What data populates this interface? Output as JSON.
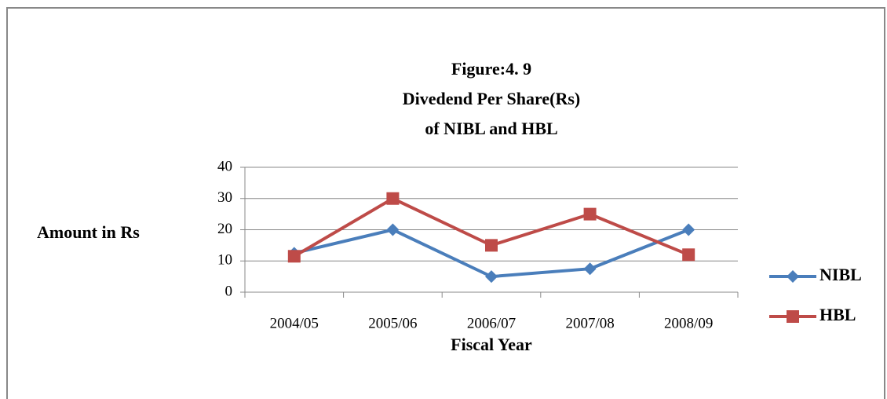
{
  "chart_data": {
    "type": "line",
    "title": [
      "Figure:4. 9",
      "Divedend  Per Share(Rs)",
      "of NIBL and HBL"
    ],
    "x_label": "Fiscal Year",
    "y_label": "Amount in Rs",
    "categories": [
      "2004/05",
      "2005/06",
      "2006/07",
      "2007/08",
      "2008/09"
    ],
    "series": [
      {
        "name": "NIBL",
        "color": "#4a7ebb",
        "marker": "diamond",
        "values": [
          12.5,
          20,
          5,
          7.5,
          20
        ]
      },
      {
        "name": "HBL",
        "color": "#be4b48",
        "marker": "square",
        "values": [
          11.5,
          30,
          15,
          25,
          12
        ]
      }
    ],
    "ylim": [
      0,
      40
    ],
    "yticks": [
      0,
      10,
      20,
      30,
      40
    ],
    "grid": true,
    "legend": "right"
  }
}
